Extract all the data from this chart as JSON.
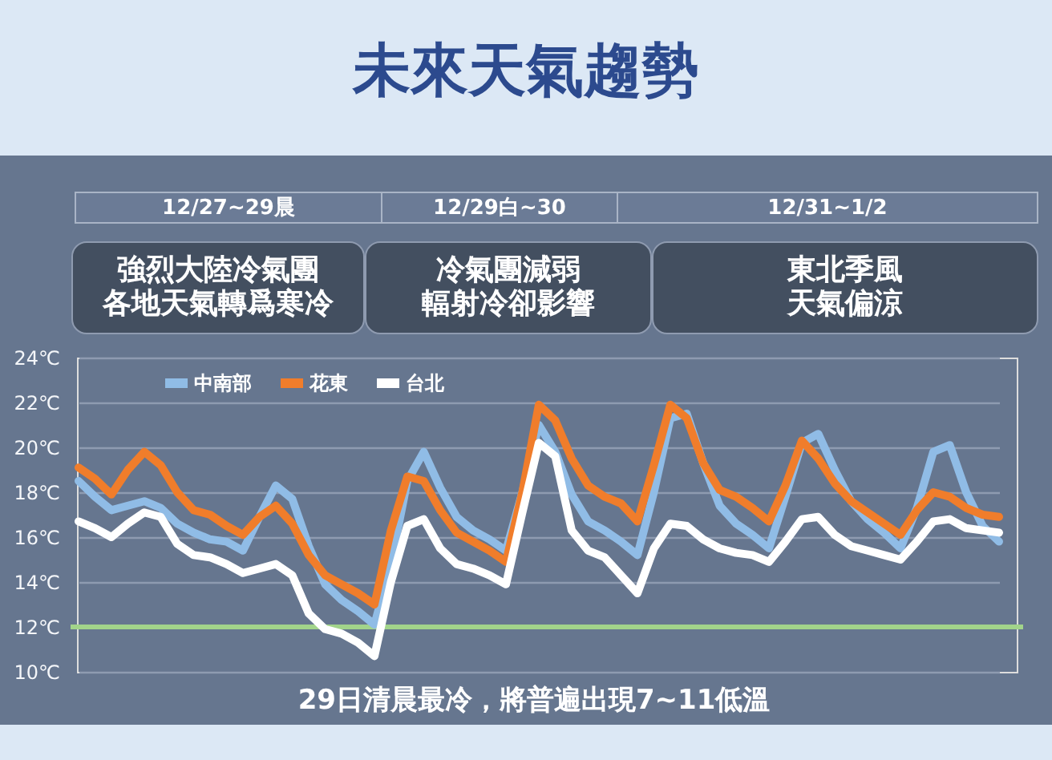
{
  "chart_data": {
    "type": "line",
    "title": "未來天氣趨勢",
    "categories": [
      null,
      null,
      null,
      null,
      null,
      null,
      null,
      null,
      null,
      null,
      null,
      null,
      null,
      null,
      null,
      null,
      null,
      null,
      null,
      null,
      null,
      null,
      null,
      null,
      null,
      null,
      null,
      null,
      null,
      null,
      null,
      null,
      null,
      null,
      null,
      null,
      null,
      null,
      null,
      null,
      null,
      null,
      null,
      null,
      null,
      null,
      null,
      null,
      null,
      null,
      null,
      null,
      null,
      null,
      null,
      null,
      null
    ],
    "series": [
      {
        "name": "中南部",
        "color": "#90bce6",
        "values": [
          18.5,
          17.8,
          17.2,
          17.4,
          17.6,
          17.3,
          16.6,
          16.2,
          15.9,
          15.8,
          15.4,
          16.9,
          18.3,
          17.7,
          15.6,
          13.9,
          13.2,
          12.7,
          12.1,
          14.8,
          18.5,
          19.8,
          18.2,
          16.9,
          16.3,
          15.9,
          15.4,
          18.0,
          21.0,
          19.8,
          17.9,
          16.7,
          16.3,
          15.8,
          15.2,
          18.0,
          21.3,
          21.5,
          19.3,
          17.4,
          16.6,
          16.1,
          15.5,
          17.8,
          20.2,
          20.6,
          19.0,
          17.6,
          16.8,
          16.2,
          15.5,
          17.3,
          19.8,
          20.1,
          18.0,
          16.5,
          15.8
        ]
      },
      {
        "name": "花東",
        "color": "#f07d2b",
        "values": [
          19.1,
          18.6,
          17.9,
          19.0,
          19.8,
          19.2,
          18.0,
          17.2,
          17.0,
          16.5,
          16.1,
          16.9,
          17.4,
          16.6,
          15.2,
          14.3,
          13.9,
          13.5,
          13.0,
          16.3,
          18.7,
          18.5,
          17.2,
          16.2,
          15.8,
          15.4,
          14.9,
          18.0,
          21.9,
          21.2,
          19.5,
          18.3,
          17.8,
          17.5,
          16.7,
          19.2,
          21.9,
          21.3,
          19.3,
          18.1,
          17.8,
          17.3,
          16.7,
          18.3,
          20.3,
          19.5,
          18.4,
          17.6,
          17.1,
          16.6,
          16.1,
          17.2,
          18.0,
          17.8,
          17.3,
          17.0,
          16.9
        ]
      },
      {
        "name": "台北",
        "color": "#ffffff",
        "values": [
          16.7,
          16.4,
          16.0,
          16.6,
          17.1,
          16.9,
          15.7,
          15.2,
          15.1,
          14.8,
          14.4,
          14.6,
          14.8,
          14.3,
          12.6,
          11.9,
          11.7,
          11.3,
          10.7,
          14.0,
          16.5,
          16.8,
          15.5,
          14.8,
          14.6,
          14.3,
          13.9,
          17.1,
          20.2,
          19.6,
          16.3,
          15.4,
          15.1,
          14.3,
          13.5,
          15.5,
          16.6,
          16.5,
          15.9,
          15.5,
          15.3,
          15.2,
          14.9,
          15.8,
          16.8,
          16.9,
          16.1,
          15.6,
          15.4,
          15.2,
          15.0,
          15.8,
          16.7,
          16.8,
          16.4,
          16.3,
          16.2
        ]
      }
    ],
    "ylim": [
      10,
      24
    ],
    "yticks": [
      {
        "value": 10,
        "label": "10℃"
      },
      {
        "value": 12,
        "label": "12℃"
      },
      {
        "value": 14,
        "label": "14℃"
      },
      {
        "value": 16,
        "label": "16℃"
      },
      {
        "value": 18,
        "label": "18℃"
      },
      {
        "value": 20,
        "label": "20℃"
      },
      {
        "value": 22,
        "label": "22℃"
      },
      {
        "value": 24,
        "label": "24℃"
      }
    ],
    "grid": "y",
    "legend": "top left",
    "tick_labels": "y",
    "ref_lines": [
      {
        "axis": "y",
        "value": 12,
        "color": "#a2d48a"
      }
    ],
    "annotations": [
      "12/27~29晨",
      "12/29白~30",
      "12/31~1/2",
      "強烈大陸冷氣團各地天氣轉爲寒冷",
      "冷氣團減弱輻射冷卻影響",
      "東北季風天氣偏涼",
      "29日清晨最冷，將普遍出現7~11低溫"
    ]
  }
}
